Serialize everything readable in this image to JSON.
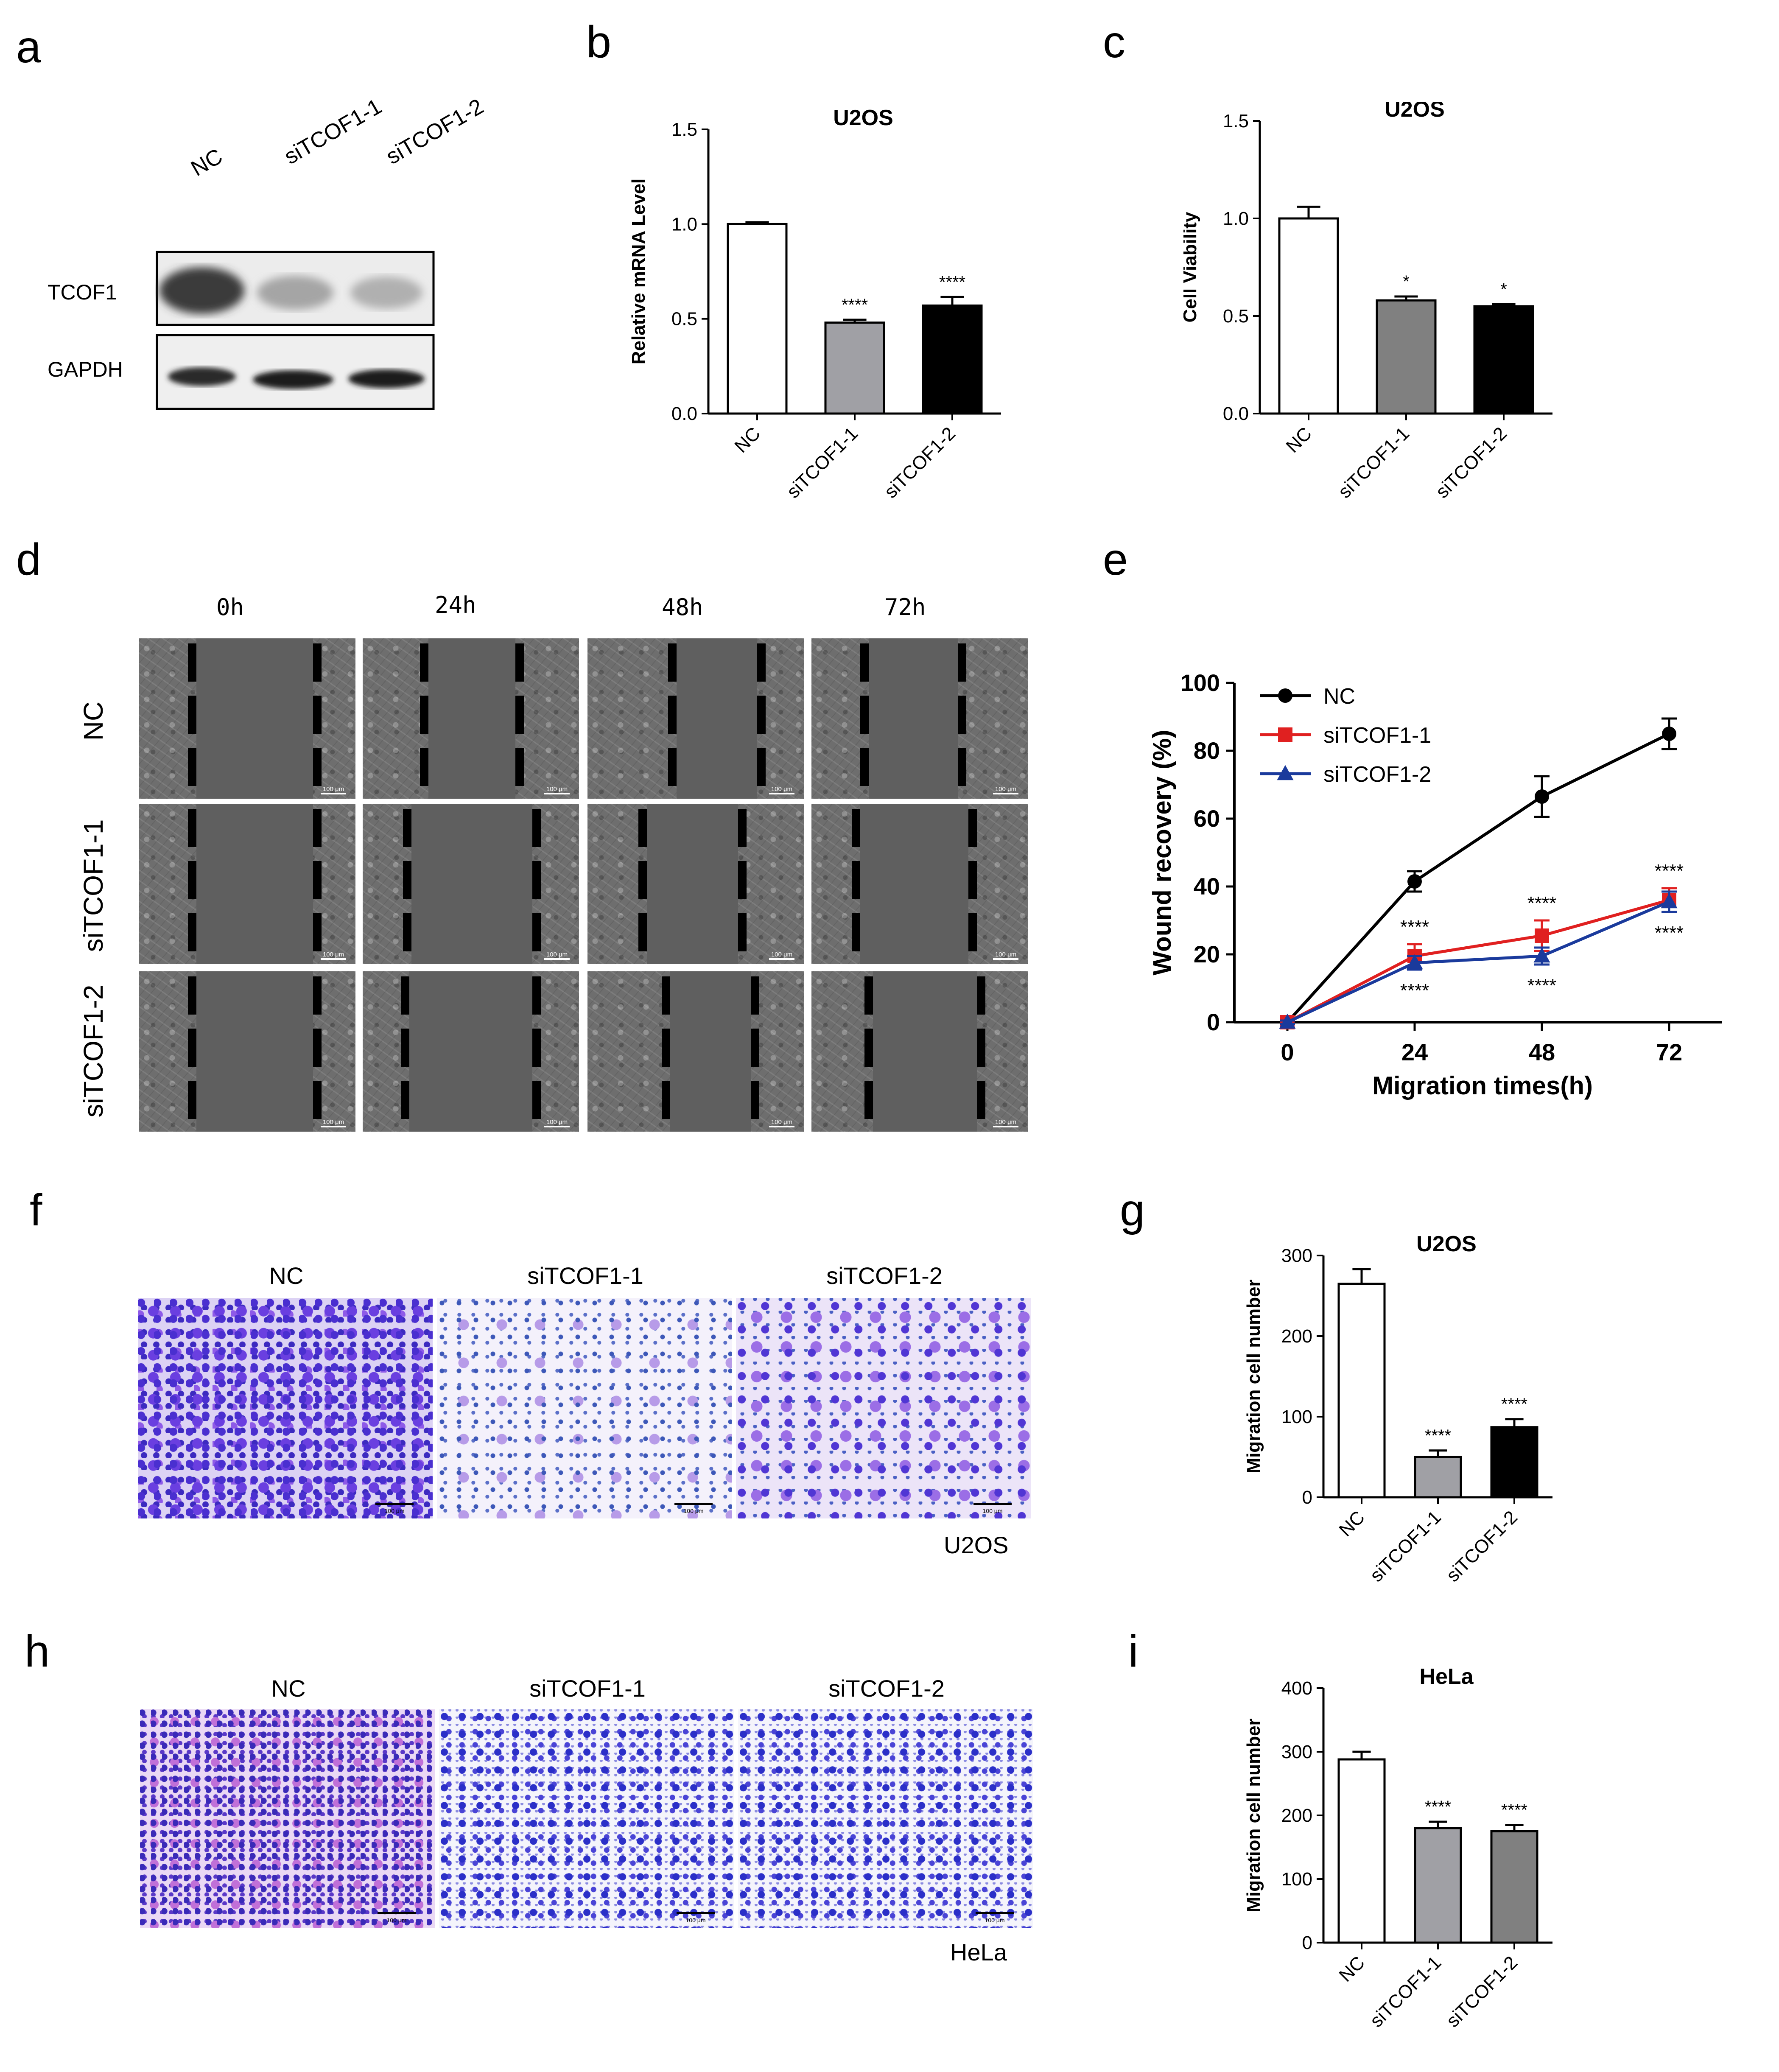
{
  "panel_labels": {
    "a": "a",
    "b": "b",
    "c": "c",
    "d": "d",
    "e": "e",
    "f": "f",
    "g": "g",
    "h": "h",
    "i": "i"
  },
  "western_blot": {
    "lanes": [
      "NC",
      "siTCOF1-1",
      "siTCOF1-2"
    ],
    "rows": [
      "TCOF1",
      "GAPDH"
    ]
  },
  "wound_images": {
    "time_labels": [
      "0h",
      "24h",
      "48h",
      "72h"
    ],
    "row_labels": [
      "NC",
      "siTCOF1-1",
      "siTCOF1-2"
    ],
    "scale_label": "100 μm"
  },
  "transwell": {
    "scale_label": "100 μm",
    "u2os": {
      "columns": [
        "NC",
        "siTCOF1-1",
        "siTCOF1-2"
      ],
      "cell_line": "U2OS"
    },
    "hela": {
      "columns": [
        "NC",
        "siTCOF1-1",
        "siTCOF1-2"
      ],
      "cell_line": "HeLa"
    }
  },
  "chart_data": [
    {
      "id": "b",
      "type": "bar",
      "title": "U2OS",
      "xlabel": "",
      "ylabel": "Relative mRNA Level",
      "categories": [
        "NC",
        "siTCOF1-1",
        "siTCOF1-2"
      ],
      "values": [
        1.0,
        0.48,
        0.57
      ],
      "errors": [
        0.01,
        0.015,
        0.045
      ],
      "colors": [
        "#ffffff",
        "#a0a0a5",
        "#000000"
      ],
      "significance": [
        "",
        "****",
        "****"
      ],
      "ylim": [
        0,
        1.5
      ],
      "yticks": [
        0.0,
        0.5,
        1.0,
        1.5
      ],
      "ytick_labels": [
        "0.0",
        "0.5",
        "1.0",
        "1.5"
      ]
    },
    {
      "id": "c",
      "type": "bar",
      "title": "U2OS",
      "xlabel": "",
      "ylabel": "Cell Viability",
      "categories": [
        "NC",
        "siTCOF1-1",
        "siTCOF1-2"
      ],
      "values": [
        1.0,
        0.58,
        0.55
      ],
      "errors": [
        0.06,
        0.02,
        0.01
      ],
      "colors": [
        "#ffffff",
        "#808080",
        "#000000"
      ],
      "significance": [
        "",
        "*",
        "*"
      ],
      "ylim": [
        0,
        1.5
      ],
      "yticks": [
        0.0,
        0.5,
        1.0,
        1.5
      ],
      "ytick_labels": [
        "0.0",
        "0.5",
        "1.0",
        "1.5"
      ]
    },
    {
      "id": "e",
      "type": "line",
      "title": "",
      "xlabel": "Migration times(h)",
      "ylabel": "Wound recovery (%)",
      "x": [
        0,
        24,
        48,
        72
      ],
      "ylim": [
        0,
        100
      ],
      "yticks": [
        0,
        20,
        40,
        60,
        80,
        100
      ],
      "legend_position": "top-left",
      "series": [
        {
          "name": "NC",
          "values": [
            0,
            41.5,
            66.5,
            85
          ],
          "errors": [
            0.5,
            3,
            6,
            4.5
          ],
          "color": "#000000",
          "marker": "circle"
        },
        {
          "name": "siTCOF1-1",
          "values": [
            0,
            19.5,
            25.5,
            36
          ],
          "errors": [
            0.5,
            3.5,
            4.5,
            3.5
          ],
          "color": "#e02020",
          "marker": "square"
        },
        {
          "name": "siTCOF1-2",
          "values": [
            0,
            17.5,
            19.5,
            35.5
          ],
          "errors": [
            0.5,
            2,
            2.5,
            3
          ],
          "color": "#1a3a9c",
          "marker": "triangle"
        }
      ],
      "significance_above": [
        "",
        "****",
        "****",
        "****"
      ],
      "significance_below": [
        "",
        "****",
        "****",
        "****"
      ]
    },
    {
      "id": "g",
      "type": "bar",
      "title": "U2OS",
      "xlabel": "",
      "ylabel": "Migration cell number",
      "categories": [
        "NC",
        "siTCOF1-1",
        "siTCOF1-2"
      ],
      "values": [
        265,
        50,
        87
      ],
      "errors": [
        18,
        8,
        10
      ],
      "colors": [
        "#ffffff",
        "#a0a0a5",
        "#000000"
      ],
      "significance": [
        "",
        "****",
        "****"
      ],
      "ylim": [
        0,
        300
      ],
      "yticks": [
        0,
        100,
        200,
        300
      ],
      "ytick_labels": [
        "0",
        "100",
        "200",
        "300"
      ]
    },
    {
      "id": "i",
      "type": "bar",
      "title": "HeLa",
      "xlabel": "",
      "ylabel": "Migration cell number",
      "categories": [
        "NC",
        "siTCOF1-1",
        "siTCOF1-2"
      ],
      "values": [
        288,
        180,
        175
      ],
      "errors": [
        12,
        10,
        10
      ],
      "colors": [
        "#ffffff",
        "#a0a0a5",
        "#808080"
      ],
      "significance": [
        "",
        "****",
        "****"
      ],
      "ylim": [
        0,
        400
      ],
      "yticks": [
        0,
        100,
        200,
        300,
        400
      ],
      "ytick_labels": [
        "0",
        "100",
        "200",
        "300",
        "400"
      ]
    }
  ]
}
